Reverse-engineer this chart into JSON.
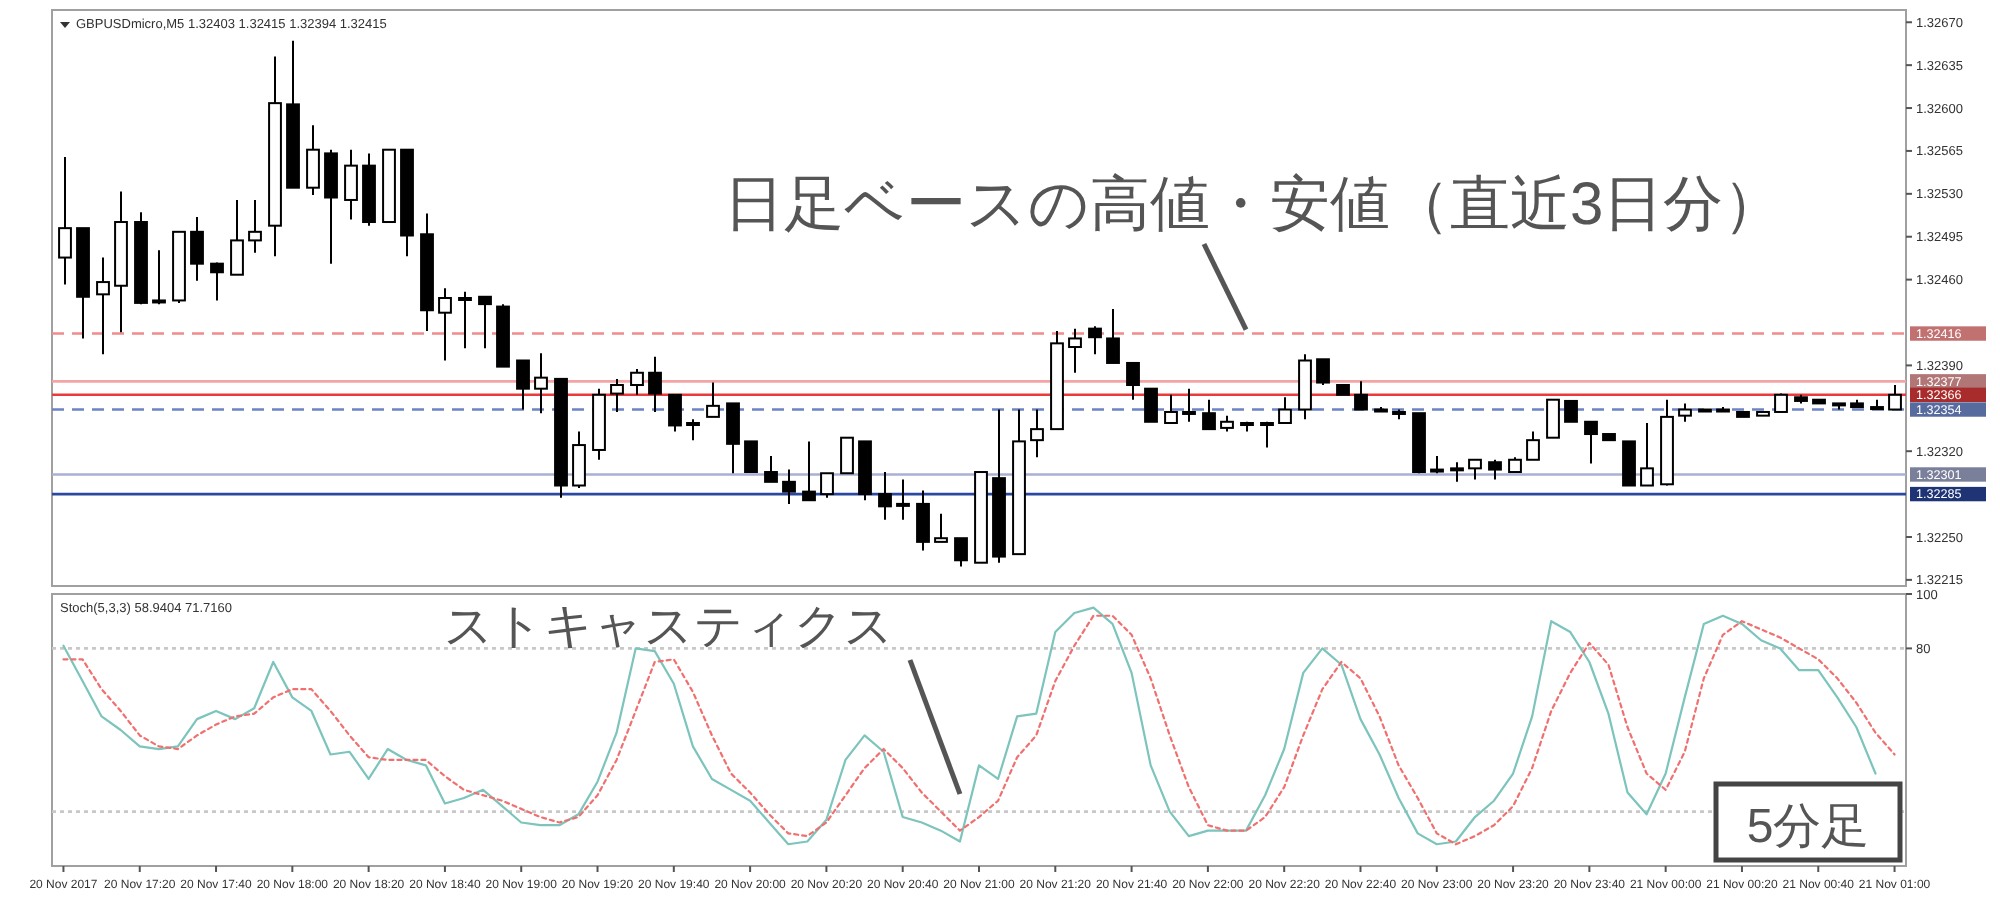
{
  "chart_data": [
    {
      "type": "candlestick",
      "title": "GBPUSDmicro,M5  1.32403 1.32415 1.32394 1.32415",
      "color": "#000000",
      "x": [
        "2017-11-20T17:00",
        "2017-11-20T17:05",
        "2017-11-20T17:10",
        "2017-11-20T17:15",
        "2017-11-20T17:20",
        "2017-11-20T17:25",
        "2017-11-20T17:30",
        "2017-11-20T17:35",
        "2017-11-20T17:40",
        "2017-11-20T17:45",
        "2017-11-20T17:50",
        "2017-11-20T17:55",
        "2017-11-20T18:00",
        "2017-11-20T18:05",
        "2017-11-20T18:10",
        "2017-11-20T18:15",
        "2017-11-20T18:20",
        "2017-11-20T18:25",
        "2017-11-20T18:30",
        "2017-11-20T18:35",
        "2017-11-20T18:40",
        "2017-11-20T18:45",
        "2017-11-20T18:50",
        "2017-11-20T18:55",
        "2017-11-20T19:00",
        "2017-11-20T19:05",
        "2017-11-20T19:10",
        "2017-11-20T19:15",
        "2017-11-20T19:20",
        "2017-11-20T19:25",
        "2017-11-20T19:30",
        "2017-11-20T19:35",
        "2017-11-20T19:40",
        "2017-11-20T19:45",
        "2017-11-20T19:50",
        "2017-11-20T19:55",
        "2017-11-20T20:00",
        "2017-11-20T20:05",
        "2017-11-20T20:10",
        "2017-11-20T20:15",
        "2017-11-20T20:20",
        "2017-11-20T20:25",
        "2017-11-20T20:30",
        "2017-11-20T20:35",
        "2017-11-20T20:40",
        "2017-11-20T20:45",
        "2017-11-20T20:50",
        "2017-11-20T20:55",
        "2017-11-20T21:00",
        "2017-11-20T21:05",
        "2017-11-20T21:10",
        "2017-11-20T21:15",
        "2017-11-20T21:20",
        "2017-11-20T21:25",
        "2017-11-20T21:30",
        "2017-11-20T21:35",
        "2017-11-20T21:40",
        "2017-11-20T21:45",
        "2017-11-20T21:50",
        "2017-11-20T21:55",
        "2017-11-20T22:00",
        "2017-11-20T22:05",
        "2017-11-20T22:10",
        "2017-11-20T22:15",
        "2017-11-20T22:20",
        "2017-11-20T22:25",
        "2017-11-20T22:30",
        "2017-11-20T22:35",
        "2017-11-20T22:40",
        "2017-11-20T22:45",
        "2017-11-20T22:50",
        "2017-11-20T22:55",
        "2017-11-20T23:00",
        "2017-11-20T23:05",
        "2017-11-20T23:10",
        "2017-11-20T23:15",
        "2017-11-20T23:20",
        "2017-11-20T23:25",
        "2017-11-20T23:30",
        "2017-11-20T23:35",
        "2017-11-20T23:40",
        "2017-11-20T23:45",
        "2017-11-20T23:50",
        "2017-11-20T23:55",
        "2017-11-21T00:00",
        "2017-11-21T00:05",
        "2017-11-21T00:10",
        "2017-11-21T00:15",
        "2017-11-21T00:20",
        "2017-11-21T00:25",
        "2017-11-21T00:30",
        "2017-11-21T00:35",
        "2017-11-21T00:40",
        "2017-11-21T00:45",
        "2017-11-21T00:50",
        "2017-11-21T00:55",
        "2017-11-21T01:00"
      ],
      "ohlc": [
        [
          1.32478,
          1.3256,
          1.32456,
          1.32502
        ],
        [
          1.32502,
          1.32502,
          1.32412,
          1.32446
        ],
        [
          1.32448,
          1.32478,
          1.32399,
          1.32458
        ],
        [
          1.32455,
          1.32532,
          1.32417,
          1.32507
        ],
        [
          1.32507,
          1.32515,
          1.3244,
          1.32441
        ],
        [
          1.32443,
          1.32484,
          1.3244,
          1.32443
        ],
        [
          1.32443,
          1.32499,
          1.32441,
          1.32499
        ],
        [
          1.32499,
          1.32511,
          1.32459,
          1.32473
        ],
        [
          1.32473,
          1.32474,
          1.32443,
          1.32466
        ],
        [
          1.32464,
          1.32525,
          1.32464,
          1.32492
        ],
        [
          1.32492,
          1.32525,
          1.32482,
          1.32499
        ],
        [
          1.32504,
          1.32642,
          1.32479,
          1.32604
        ],
        [
          1.32603,
          1.32655,
          1.32535,
          1.32535
        ],
        [
          1.32535,
          1.32586,
          1.32529,
          1.32566
        ],
        [
          1.32563,
          1.32566,
          1.32473,
          1.32527
        ],
        [
          1.32525,
          1.32566,
          1.32509,
          1.32553
        ],
        [
          1.32553,
          1.32563,
          1.32504,
          1.32507
        ],
        [
          1.32507,
          1.32566,
          1.32507,
          1.32566
        ],
        [
          1.32566,
          1.32566,
          1.32479,
          1.32496
        ],
        [
          1.32497,
          1.32514,
          1.32418,
          1.32435
        ],
        [
          1.32433,
          1.32453,
          1.32394,
          1.32445
        ],
        [
          1.32445,
          1.3245,
          1.32404,
          1.32445
        ],
        [
          1.32446,
          1.32446,
          1.32404,
          1.3244
        ],
        [
          1.32438,
          1.3244,
          1.32389,
          1.32389
        ],
        [
          1.32394,
          1.32394,
          1.32354,
          1.32371
        ],
        [
          1.32371,
          1.324,
          1.32351,
          1.3238
        ],
        [
          1.32379,
          1.32379,
          1.32282,
          1.32292
        ],
        [
          1.32292,
          1.32336,
          1.3229,
          1.32325
        ],
        [
          1.32321,
          1.32371,
          1.32313,
          1.32366
        ],
        [
          1.32367,
          1.32379,
          1.32352,
          1.32374
        ],
        [
          1.32374,
          1.32387,
          1.32366,
          1.32384
        ],
        [
          1.32384,
          1.32397,
          1.32352,
          1.32367
        ],
        [
          1.32366,
          1.32366,
          1.32336,
          1.32341
        ],
        [
          1.32343,
          1.32346,
          1.32329,
          1.32343
        ],
        [
          1.32348,
          1.32376,
          1.32348,
          1.32357
        ],
        [
          1.32359,
          1.32359,
          1.32302,
          1.32326
        ],
        [
          1.32328,
          1.32328,
          1.32303,
          1.32303
        ],
        [
          1.32303,
          1.32316,
          1.32295,
          1.32295
        ],
        [
          1.32295,
          1.32305,
          1.32277,
          1.32287
        ],
        [
          1.32287,
          1.32328,
          1.3228,
          1.3228
        ],
        [
          1.32285,
          1.32302,
          1.32282,
          1.32302
        ],
        [
          1.32302,
          1.32331,
          1.32302,
          1.32331
        ],
        [
          1.32328,
          1.32328,
          1.3228,
          1.32285
        ],
        [
          1.32285,
          1.32303,
          1.32264,
          1.32275
        ],
        [
          1.32277,
          1.32297,
          1.32264,
          1.32277
        ],
        [
          1.32277,
          1.32288,
          1.32239,
          1.32246
        ],
        [
          1.32246,
          1.32269,
          1.32246,
          1.32249
        ],
        [
          1.32249,
          1.32249,
          1.32226,
          1.32231
        ],
        [
          1.32229,
          1.32303,
          1.32229,
          1.32303
        ],
        [
          1.32298,
          1.32354,
          1.32229,
          1.32234
        ],
        [
          1.32236,
          1.32354,
          1.32236,
          1.32328
        ],
        [
          1.32329,
          1.32354,
          1.32315,
          1.32338
        ],
        [
          1.32338,
          1.32418,
          1.32338,
          1.32408
        ],
        [
          1.32405,
          1.3242,
          1.32384,
          1.32412
        ],
        [
          1.3242,
          1.32422,
          1.32399,
          1.32413
        ],
        [
          1.32412,
          1.32436,
          1.32392,
          1.32392
        ],
        [
          1.32392,
          1.32392,
          1.32362,
          1.32374
        ],
        [
          1.32371,
          1.32371,
          1.32344,
          1.32344
        ],
        [
          1.32343,
          1.32366,
          1.32343,
          1.32352
        ],
        [
          1.32352,
          1.32371,
          1.32344,
          1.32352
        ],
        [
          1.32351,
          1.32362,
          1.32338,
          1.32338
        ],
        [
          1.32339,
          1.32349,
          1.32336,
          1.32344
        ],
        [
          1.32343,
          1.32344,
          1.32336,
          1.32343
        ],
        [
          1.32343,
          1.32344,
          1.32323,
          1.32343
        ],
        [
          1.32343,
          1.32364,
          1.32343,
          1.32354
        ],
        [
          1.32354,
          1.32399,
          1.32346,
          1.32394
        ],
        [
          1.32395,
          1.32395,
          1.32374,
          1.32376
        ],
        [
          1.32374,
          1.32374,
          1.32366,
          1.32366
        ],
        [
          1.32366,
          1.32377,
          1.32354,
          1.32354
        ],
        [
          1.32354,
          1.32356,
          1.32352,
          1.32354
        ],
        [
          1.32352,
          1.32354,
          1.32346,
          1.32352
        ],
        [
          1.32351,
          1.32351,
          1.32302,
          1.32303
        ],
        [
          1.32305,
          1.32316,
          1.32302,
          1.32305
        ],
        [
          1.32306,
          1.32311,
          1.32295,
          1.32306
        ],
        [
          1.32306,
          1.32313,
          1.32297,
          1.32313
        ],
        [
          1.32311,
          1.32313,
          1.32297,
          1.32305
        ],
        [
          1.32303,
          1.32315,
          1.32303,
          1.32313
        ],
        [
          1.32313,
          1.32336,
          1.32313,
          1.32329
        ],
        [
          1.32331,
          1.32362,
          1.32331,
          1.32362
        ],
        [
          1.32361,
          1.32361,
          1.32344,
          1.32344
        ],
        [
          1.32344,
          1.32344,
          1.3231,
          1.32334
        ],
        [
          1.32334,
          1.32334,
          1.32329,
          1.32329
        ],
        [
          1.32328,
          1.32328,
          1.32292,
          1.32292
        ],
        [
          1.32292,
          1.32343,
          1.32292,
          1.32306
        ],
        [
          1.32293,
          1.32362,
          1.32292,
          1.32348
        ],
        [
          1.32349,
          1.32359,
          1.32344,
          1.32354
        ],
        [
          1.32354,
          1.32354,
          1.32352,
          1.32354
        ],
        [
          1.32354,
          1.32356,
          1.32352,
          1.32354
        ],
        [
          1.32352,
          1.32352,
          1.32348,
          1.32348
        ],
        [
          1.32349,
          1.32352,
          1.32349,
          1.32352
        ],
        [
          1.32352,
          1.32367,
          1.32352,
          1.32366
        ],
        [
          1.32364,
          1.32366,
          1.32359,
          1.32361
        ],
        [
          1.32362,
          1.32362,
          1.32359,
          1.32359
        ],
        [
          1.32359,
          1.32359,
          1.32354,
          1.32359
        ],
        [
          1.32359,
          1.32362,
          1.32356,
          1.32356
        ],
        [
          1.32356,
          1.32362,
          1.32354,
          1.32356
        ],
        [
          1.32354,
          1.32374,
          1.32354,
          1.32366
        ]
      ],
      "xlim": [
        "2017-11-20T16:57",
        "2017-11-21T01:03"
      ],
      "ylim": [
        1.3221,
        1.3268
      ],
      "yticks": [
        {
          "value": 1.3267,
          "label": "1.32670"
        },
        {
          "value": 1.32635,
          "label": "1.32635"
        },
        {
          "value": 1.326,
          "label": "1.32600"
        },
        {
          "value": 1.32565,
          "label": "1.32565"
        },
        {
          "value": 1.3253,
          "label": "1.32530"
        },
        {
          "value": 1.32495,
          "label": "1.32495"
        },
        {
          "value": 1.3246,
          "label": "1.32460"
        },
        {
          "value": 1.3239,
          "label": "1.32390"
        },
        {
          "value": 1.3232,
          "label": "1.32320"
        },
        {
          "value": 1.3225,
          "label": "1.32250"
        },
        {
          "value": 1.32215,
          "label": "1.32215"
        }
      ],
      "tick_labels": "y",
      "ref_lines": [
        {
          "axis": "y",
          "value": 1.32416,
          "label": "1.32416",
          "color": "#f08c8c",
          "line_style": "dashed"
        },
        {
          "axis": "y",
          "value": 1.32377,
          "label": "1.32377",
          "color": "#f4a4a4",
          "line_style": "solid"
        },
        {
          "axis": "y",
          "value": 1.32366,
          "label": "1.32366",
          "color": "#e83c3c",
          "line_style": "solid"
        },
        {
          "axis": "y",
          "value": 1.32354,
          "label": "1.32354",
          "color": "#6c84c4",
          "line_style": "dashed"
        },
        {
          "axis": "y",
          "value": 1.32301,
          "label": "1.32301",
          "color": "#a8b0d4",
          "line_style": "solid"
        },
        {
          "axis": "y",
          "value": 1.32285,
          "label": "1.32285",
          "color": "#2a48a0",
          "line_style": "solid"
        }
      ],
      "annotations": [
        {
          "text": "日足ベースの高値・安値（直近3日分）",
          "x": "2017-11-20T22:10",
          "y": 1.32416
        }
      ]
    },
    {
      "type": "line",
      "title": "Stoch(5,3,3) 58.9404 71.7160",
      "x": [
        "2017-11-20T17:00",
        "2017-11-20T17:05",
        "2017-11-20T17:10",
        "2017-11-20T17:15",
        "2017-11-20T17:20",
        "2017-11-20T17:25",
        "2017-11-20T17:30",
        "2017-11-20T17:35",
        "2017-11-20T17:40",
        "2017-11-20T17:45",
        "2017-11-20T17:50",
        "2017-11-20T17:55",
        "2017-11-20T18:00",
        "2017-11-20T18:05",
        "2017-11-20T18:10",
        "2017-11-20T18:15",
        "2017-11-20T18:20",
        "2017-11-20T18:25",
        "2017-11-20T18:30",
        "2017-11-20T18:35",
        "2017-11-20T18:40",
        "2017-11-20T18:45",
        "2017-11-20T18:50",
        "2017-11-20T18:55",
        "2017-11-20T19:00",
        "2017-11-20T19:05",
        "2017-11-20T19:10",
        "2017-11-20T19:15",
        "2017-11-20T19:20",
        "2017-11-20T19:25",
        "2017-11-20T19:30",
        "2017-11-20T19:35",
        "2017-11-20T19:40",
        "2017-11-20T19:45",
        "2017-11-20T19:50",
        "2017-11-20T19:55",
        "2017-11-20T20:00",
        "2017-11-20T20:05",
        "2017-11-20T20:10",
        "2017-11-20T20:15",
        "2017-11-20T20:20",
        "2017-11-20T20:25",
        "2017-11-20T20:30",
        "2017-11-20T20:35",
        "2017-11-20T20:40",
        "2017-11-20T20:45",
        "2017-11-20T20:50",
        "2017-11-20T20:55",
        "2017-11-20T21:00",
        "2017-11-20T21:05",
        "2017-11-20T21:10",
        "2017-11-20T21:15",
        "2017-11-20T21:20",
        "2017-11-20T21:25",
        "2017-11-20T21:30",
        "2017-11-20T21:35",
        "2017-11-20T21:40",
        "2017-11-20T21:45",
        "2017-11-20T21:50",
        "2017-11-20T21:55",
        "2017-11-20T22:00",
        "2017-11-20T22:05",
        "2017-11-20T22:10",
        "2017-11-20T22:15",
        "2017-11-20T22:20",
        "2017-11-20T22:25",
        "2017-11-20T22:30",
        "2017-11-20T22:35",
        "2017-11-20T22:40",
        "2017-11-20T22:45",
        "2017-11-20T22:50",
        "2017-11-20T22:55",
        "2017-11-20T23:00",
        "2017-11-20T23:05",
        "2017-11-20T23:10",
        "2017-11-20T23:15",
        "2017-11-20T23:20",
        "2017-11-20T23:25",
        "2017-11-20T23:30",
        "2017-11-20T23:35",
        "2017-11-20T23:40",
        "2017-11-20T23:45",
        "2017-11-20T23:50",
        "2017-11-20T23:55",
        "2017-11-21T00:00",
        "2017-11-21T00:05",
        "2017-11-21T00:10",
        "2017-11-21T00:15",
        "2017-11-21T00:20",
        "2017-11-21T00:25",
        "2017-11-21T00:30",
        "2017-11-21T00:35",
        "2017-11-21T00:40",
        "2017-11-21T00:45",
        "2017-11-21T00:50",
        "2017-11-21T00:55",
        "2017-11-21T01:00"
      ],
      "series": [
        {
          "color": "#7cc4bc",
          "line_style": "solid",
          "values": [
            81,
            68,
            55,
            50,
            44,
            43,
            44,
            54,
            57,
            54,
            58,
            75,
            62,
            57,
            41,
            42,
            32,
            43,
            39,
            37,
            23,
            25,
            28,
            22,
            16,
            15,
            15,
            19,
            31,
            49,
            80,
            79,
            67,
            44,
            32,
            28,
            24,
            16,
            8,
            9,
            17,
            39,
            48,
            42,
            18,
            16,
            13,
            9,
            37,
            32,
            55,
            56,
            86,
            93,
            95,
            89,
            71,
            37,
            20,
            11,
            13,
            13,
            13,
            26,
            43,
            71,
            80,
            74,
            54,
            41,
            25,
            12,
            8,
            9,
            18,
            24,
            34,
            55,
            90,
            86,
            75,
            56,
            27,
            19,
            34,
            62,
            89,
            92,
            89,
            83,
            80,
            72,
            72,
            62,
            51,
            34,
            null
          ]
        },
        {
          "color": "#f07070",
          "line_style": "dotted",
          "values": [
            76,
            76,
            65,
            57,
            48,
            44,
            43,
            48,
            52,
            55,
            56,
            62,
            65,
            65,
            57,
            48,
            40,
            39,
            39,
            39,
            33,
            28,
            26,
            24,
            21,
            18,
            16,
            18,
            26,
            39,
            57,
            75,
            76,
            64,
            48,
            34,
            27,
            19,
            12,
            11,
            16,
            26,
            36,
            43,
            36,
            27,
            20,
            13,
            18,
            24,
            40,
            48,
            68,
            81,
            92,
            92,
            85,
            69,
            48,
            29,
            15,
            13,
            13,
            18,
            29,
            48,
            65,
            75,
            69,
            55,
            37,
            25,
            12,
            8,
            11,
            15,
            22,
            36,
            57,
            71,
            82,
            74,
            51,
            34,
            28,
            42,
            69,
            85,
            90,
            87,
            84,
            80,
            76,
            69,
            60,
            49,
            41
          ]
        }
      ],
      "xlim": [
        "2017-11-20T16:57",
        "2017-11-21T01:03"
      ],
      "ylim": [
        0,
        100
      ],
      "yticks": [
        100,
        80
      ],
      "xticks": [
        {
          "value": "2017-11-20T17:00",
          "label": "20 Nov 2017"
        },
        {
          "value": "2017-11-20T17:20",
          "label": "20 Nov 17:20"
        },
        {
          "value": "2017-11-20T17:40",
          "label": "20 Nov 17:40"
        },
        {
          "value": "2017-11-20T18:00",
          "label": "20 Nov 18:00"
        },
        {
          "value": "2017-11-20T18:20",
          "label": "20 Nov 18:20"
        },
        {
          "value": "2017-11-20T18:40",
          "label": "20 Nov 18:40"
        },
        {
          "value": "2017-11-20T19:00",
          "label": "20 Nov 19:00"
        },
        {
          "value": "2017-11-20T19:20",
          "label": "20 Nov 19:20"
        },
        {
          "value": "2017-11-20T19:40",
          "label": "20 Nov 19:40"
        },
        {
          "value": "2017-11-20T20:00",
          "label": "20 Nov 20:00"
        },
        {
          "value": "2017-11-20T20:20",
          "label": "20 Nov 20:20"
        },
        {
          "value": "2017-11-20T20:40",
          "label": "20 Nov 20:40"
        },
        {
          "value": "2017-11-20T21:00",
          "label": "20 Nov 21:00"
        },
        {
          "value": "2017-11-20T21:20",
          "label": "20 Nov 21:20"
        },
        {
          "value": "2017-11-20T21:40",
          "label": "20 Nov 21:40"
        },
        {
          "value": "2017-11-20T22:00",
          "label": "20 Nov 22:00"
        },
        {
          "value": "2017-11-20T22:20",
          "label": "20 Nov 22:20"
        },
        {
          "value": "2017-11-20T22:40",
          "label": "20 Nov 22:40"
        },
        {
          "value": "2017-11-20T23:00",
          "label": "20 Nov 23:00"
        },
        {
          "value": "2017-11-20T23:20",
          "label": "20 Nov 23:20"
        },
        {
          "value": "2017-11-20T23:40",
          "label": "20 Nov 23:40"
        },
        {
          "value": "2017-11-21T00:00",
          "label": "21 Nov 00:00"
        },
        {
          "value": "2017-11-21T00:20",
          "label": "21 Nov 00:20"
        },
        {
          "value": "2017-11-21T00:40",
          "label": "21 Nov 00:40"
        },
        {
          "value": "2017-11-21T01:00",
          "label": "21 Nov 01:00"
        }
      ],
      "ref_lines": [
        {
          "axis": "y",
          "value": 80,
          "color": "#c8c8c8",
          "line_style": "dotted"
        },
        {
          "axis": "y",
          "value": 20,
          "color": "#c8c8c8",
          "line_style": "dotted"
        }
      ],
      "annotations": [
        {
          "text": "ストキャスティクス",
          "x": "2017-11-20T20:55",
          "y": 25
        },
        "5分足"
      ]
    }
  ]
}
